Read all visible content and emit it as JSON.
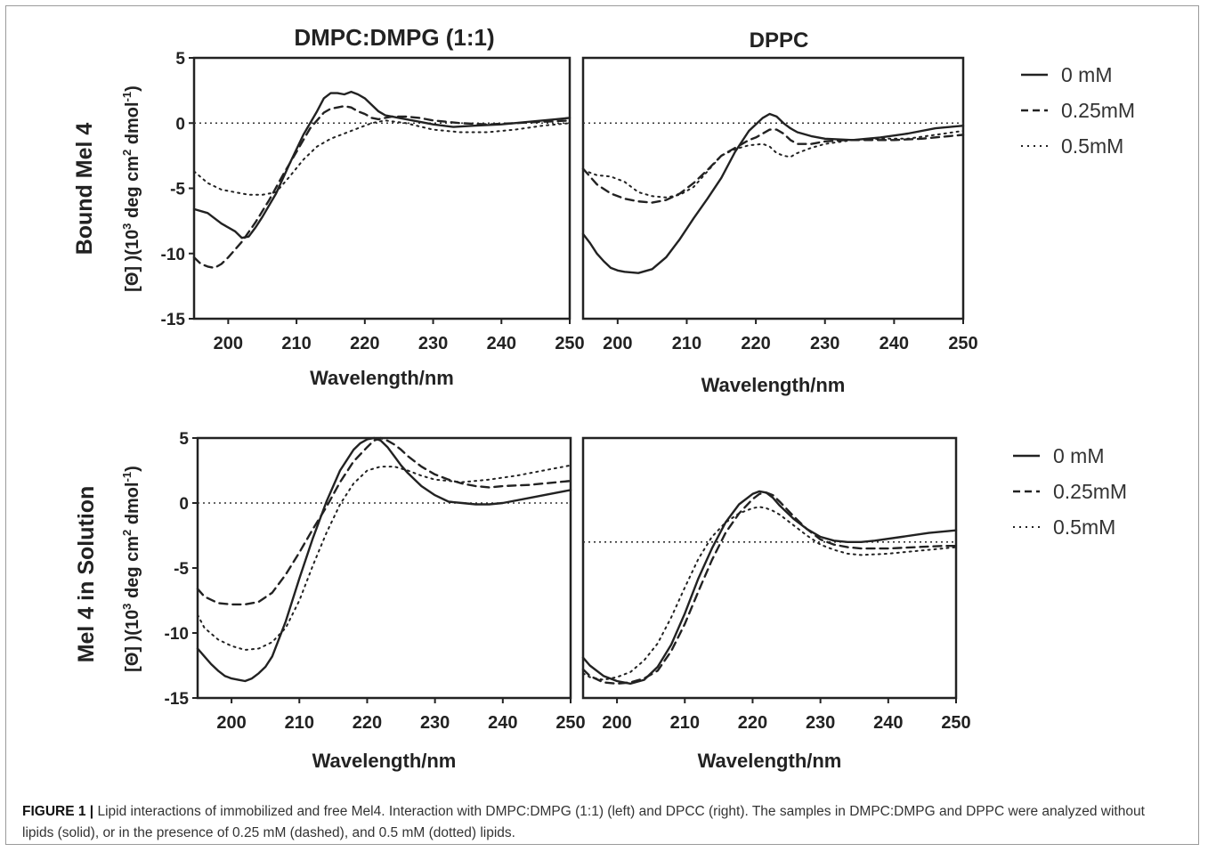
{
  "figure": {
    "row_labels": [
      "Bound Mel 4",
      "Mel 4 in Solution"
    ],
    "col_titles": [
      "DMPC:DMPG (1:1)",
      "DPPC"
    ],
    "ylabel_text": "[Θ] )(10",
    "ylabel_sup1": "3",
    "ylabel_mid": " deg cm",
    "ylabel_sup2": "2",
    "ylabel_mid2": " dmol",
    "ylabel_sup3": "-1",
    "ylabel_end": ")",
    "legend_top": [
      "0 mM",
      "0.25mM",
      "0.5mM"
    ],
    "legend_bottom": [
      "0 mM",
      "0.25mM",
      "0.5mM"
    ]
  },
  "caption": {
    "label": "FIGURE 1 |",
    "text": " Lipid interactions of immobilized and free Mel4. Interaction with DMPC:DMPG (1:1) (left) and DPCC (right). The samples in DMPC:DMPG and DPPC were analyzed without lipids (solid), or in the presence of 0.25 mM (dashed), and 0.5 mM (dotted) lipids."
  },
  "chart_data": [
    {
      "type": "line",
      "panel": "top-left",
      "title": "DMPC:DMPG (1:1)",
      "xlabel": "Wavelength/nm",
      "ylabel": "[Θ] )(10^3 deg cm^2 dmol^-1)",
      "xlim": [
        195,
        250
      ],
      "ylim": [
        -15,
        5
      ],
      "xticks": [
        200,
        210,
        220,
        230,
        240,
        250
      ],
      "yticks": [
        5,
        0,
        -5,
        -10,
        -15
      ],
      "zero_line": true,
      "series": [
        {
          "name": "0 mM",
          "style": "solid",
          "x": [
            195,
            197,
            199,
            201,
            202,
            203,
            204,
            205,
            207,
            209,
            211,
            213,
            214,
            215,
            216,
            217,
            218,
            219,
            220,
            221,
            222,
            223,
            225,
            227,
            230,
            233,
            236,
            240,
            244,
            248,
            250
          ],
          "y": [
            -6.6,
            -6.9,
            -7.7,
            -8.3,
            -8.8,
            -8.7,
            -8.0,
            -7.2,
            -5.4,
            -3.1,
            -0.9,
            0.9,
            1.9,
            2.3,
            2.3,
            2.2,
            2.4,
            2.2,
            1.9,
            1.4,
            0.9,
            0.6,
            0.4,
            0.2,
            -0.1,
            -0.3,
            -0.2,
            -0.1,
            0.1,
            0.3,
            0.4
          ]
        },
        {
          "name": "0.25mM",
          "style": "dashed",
          "x": [
            195,
            196,
            197,
            198,
            199,
            200,
            202,
            204,
            206,
            208,
            210,
            212,
            214,
            215,
            216,
            217,
            218,
            219,
            220,
            221,
            222,
            224,
            226,
            228,
            230,
            234,
            238,
            242,
            246,
            250
          ],
          "y": [
            -10.3,
            -10.8,
            -11.0,
            -11.1,
            -10.8,
            -10.3,
            -9.1,
            -7.6,
            -5.9,
            -4.0,
            -2.2,
            -0.4,
            0.8,
            1.1,
            1.2,
            1.3,
            1.2,
            0.9,
            0.7,
            0.4,
            0.3,
            0.5,
            0.5,
            0.4,
            0.2,
            0.0,
            -0.1,
            0.0,
            0.1,
            0.2
          ]
        },
        {
          "name": "0.5mM",
          "style": "dotted",
          "x": [
            195,
            197,
            199,
            201,
            203,
            205,
            207,
            209,
            211,
            213,
            215,
            217,
            219,
            221,
            223,
            226,
            230,
            234,
            238,
            242,
            246,
            250
          ],
          "y": [
            -3.7,
            -4.6,
            -5.1,
            -5.3,
            -5.5,
            -5.5,
            -5.3,
            -4.1,
            -2.8,
            -1.8,
            -1.2,
            -0.8,
            -0.4,
            0.0,
            0.2,
            0.0,
            -0.5,
            -0.7,
            -0.7,
            -0.5,
            -0.2,
            0.0
          ]
        }
      ]
    },
    {
      "type": "line",
      "panel": "top-right",
      "title": "DPPC",
      "xlabel": "Wavelength/nm",
      "xlim": [
        195,
        250
      ],
      "ylim": [
        -15,
        5
      ],
      "xticks": [
        200,
        210,
        220,
        230,
        240,
        250
      ],
      "zero_line": true,
      "series": [
        {
          "name": "0 mM",
          "style": "solid",
          "x": [
            195,
            196,
            197,
            198,
            199,
            200,
            201,
            203,
            205,
            207,
            209,
            211,
            213,
            215,
            217,
            219,
            221,
            222,
            223,
            224,
            225,
            226,
            228,
            230,
            234,
            238,
            242,
            246,
            250
          ],
          "y": [
            -8.5,
            -9.2,
            -10.0,
            -10.6,
            -11.1,
            -11.3,
            -11.4,
            -11.5,
            -11.2,
            -10.3,
            -8.9,
            -7.3,
            -5.8,
            -4.2,
            -2.2,
            -0.6,
            0.4,
            0.7,
            0.5,
            0.0,
            -0.4,
            -0.7,
            -1.0,
            -1.2,
            -1.3,
            -1.1,
            -0.8,
            -0.4,
            -0.2
          ]
        },
        {
          "name": "0.25mM",
          "style": "dashed",
          "x": [
            195,
            197,
            199,
            201,
            203,
            205,
            207,
            209,
            211,
            213,
            215,
            217,
            219,
            220,
            221,
            222,
            223,
            224,
            225,
            226,
            228,
            230,
            233,
            236,
            240,
            244,
            248,
            250
          ],
          "y": [
            -3.5,
            -4.7,
            -5.4,
            -5.8,
            -6.0,
            -6.1,
            -5.9,
            -5.4,
            -4.6,
            -3.6,
            -2.5,
            -1.9,
            -1.3,
            -1.1,
            -0.8,
            -0.5,
            -0.5,
            -0.8,
            -1.3,
            -1.6,
            -1.6,
            -1.4,
            -1.3,
            -1.3,
            -1.3,
            -1.2,
            -1.0,
            -0.9
          ]
        },
        {
          "name": "0.5mM",
          "style": "dotted",
          "x": [
            195,
            197,
            199,
            201,
            203,
            205,
            207,
            209,
            211,
            213,
            215,
            217,
            219,
            221,
            222,
            223,
            224,
            225,
            226,
            228,
            230,
            234,
            238,
            242,
            246,
            250
          ],
          "y": [
            -3.6,
            -4.0,
            -4.1,
            -4.5,
            -5.3,
            -5.6,
            -5.7,
            -5.5,
            -4.9,
            -3.7,
            -2.5,
            -2.0,
            -1.7,
            -1.6,
            -1.8,
            -2.3,
            -2.5,
            -2.6,
            -2.3,
            -1.9,
            -1.6,
            -1.3,
            -1.2,
            -1.2,
            -0.9,
            -0.6
          ]
        }
      ]
    },
    {
      "type": "line",
      "panel": "bottom-left",
      "xlabel": "Wavelength/nm",
      "ylabel": "[Θ] )(10^3 deg cm^2 dmol^-1)",
      "xlim": [
        195,
        250
      ],
      "ylim": [
        -15,
        5
      ],
      "xticks": [
        200,
        210,
        220,
        230,
        240,
        250
      ],
      "yticks": [
        5,
        0,
        -5,
        -10,
        -15
      ],
      "zero_line": true,
      "series": [
        {
          "name": "0 mM",
          "style": "solid",
          "x": [
            195,
            196,
            197,
            198,
            199,
            200,
            201,
            202,
            203,
            204,
            205,
            206,
            208,
            210,
            212,
            214,
            216,
            218,
            219,
            220,
            221,
            222,
            223,
            224,
            225,
            226,
            228,
            230,
            232,
            234,
            236,
            238,
            240,
            244,
            248,
            250
          ],
          "y": [
            -11.2,
            -11.8,
            -12.4,
            -12.9,
            -13.3,
            -13.5,
            -13.6,
            -13.7,
            -13.5,
            -13.1,
            -12.6,
            -11.8,
            -9.1,
            -5.8,
            -2.7,
            0.1,
            2.5,
            4.1,
            4.6,
            4.9,
            5.0,
            4.8,
            4.3,
            3.6,
            2.9,
            2.3,
            1.3,
            0.6,
            0.1,
            0.0,
            -0.1,
            -0.1,
            0.0,
            0.4,
            0.8,
            1.0
          ]
        },
        {
          "name": "0.25mM",
          "style": "dashed",
          "x": [
            195,
            196,
            198,
            200,
            202,
            204,
            206,
            208,
            210,
            212,
            214,
            216,
            218,
            220,
            221,
            222,
            223,
            224,
            225,
            226,
            228,
            230,
            232,
            234,
            236,
            238,
            240,
            244,
            248,
            250
          ],
          "y": [
            -6.6,
            -7.2,
            -7.7,
            -7.8,
            -7.8,
            -7.6,
            -6.9,
            -5.5,
            -3.8,
            -2.0,
            -0.3,
            1.6,
            3.2,
            4.3,
            4.8,
            5.0,
            4.8,
            4.5,
            4.1,
            3.6,
            2.8,
            2.2,
            1.8,
            1.5,
            1.3,
            1.2,
            1.3,
            1.4,
            1.6,
            1.7
          ]
        },
        {
          "name": "0.5mM",
          "style": "dotted",
          "x": [
            195,
            196,
            198,
            200,
            202,
            204,
            206,
            208,
            210,
            212,
            214,
            216,
            218,
            220,
            222,
            224,
            226,
            228,
            230,
            234,
            238,
            242,
            246,
            250
          ],
          "y": [
            -8.6,
            -9.6,
            -10.5,
            -11.0,
            -11.3,
            -11.2,
            -10.7,
            -9.6,
            -7.5,
            -4.8,
            -2.3,
            -0.1,
            1.5,
            2.5,
            2.8,
            2.8,
            2.5,
            2.1,
            1.8,
            1.6,
            1.8,
            2.1,
            2.5,
            2.9
          ]
        }
      ]
    },
    {
      "type": "line",
      "panel": "bottom-right",
      "xlabel": "Wavelength/nm",
      "xlim": [
        195,
        250
      ],
      "ylim": [
        -15,
        5
      ],
      "xticks": [
        200,
        210,
        220,
        230,
        240,
        250
      ],
      "zero_line": true,
      "zero_line_value": -3,
      "series": [
        {
          "name": "0 mM",
          "style": "solid",
          "x": [
            195,
            196,
            198,
            200,
            202,
            204,
            206,
            208,
            210,
            212,
            214,
            216,
            218,
            220,
            221,
            222,
            223,
            224,
            226,
            228,
            230,
            232,
            234,
            236,
            238,
            242,
            246,
            250
          ],
          "y": [
            -11.9,
            -12.5,
            -13.3,
            -13.7,
            -13.9,
            -13.6,
            -12.6,
            -10.9,
            -8.5,
            -5.8,
            -3.5,
            -1.5,
            -0.1,
            0.7,
            0.9,
            0.8,
            0.4,
            -0.2,
            -1.2,
            -2.0,
            -2.6,
            -2.9,
            -3.0,
            -3.0,
            -2.9,
            -2.6,
            -2.3,
            -2.1
          ]
        },
        {
          "name": "0.25mM",
          "style": "dashed",
          "x": [
            195,
            196,
            198,
            200,
            202,
            204,
            206,
            208,
            210,
            212,
            214,
            216,
            218,
            220,
            221,
            222,
            223,
            224,
            226,
            228,
            230,
            232,
            234,
            236,
            240,
            244,
            248,
            250
          ],
          "y": [
            -12.8,
            -13.3,
            -13.8,
            -13.9,
            -13.8,
            -13.5,
            -12.9,
            -11.4,
            -9.3,
            -6.8,
            -4.4,
            -2.3,
            -0.8,
            0.3,
            0.7,
            0.8,
            0.6,
            0.1,
            -1.0,
            -2.0,
            -2.8,
            -3.2,
            -3.4,
            -3.5,
            -3.5,
            -3.4,
            -3.3,
            -3.3
          ]
        },
        {
          "name": "0.5mM",
          "style": "dotted",
          "x": [
            195,
            196,
            198,
            200,
            202,
            204,
            206,
            208,
            210,
            212,
            214,
            216,
            218,
            220,
            221,
            222,
            223,
            224,
            226,
            228,
            230,
            232,
            234,
            236,
            240,
            244,
            248,
            250
          ],
          "y": [
            -13.1,
            -13.4,
            -13.6,
            -13.4,
            -13.0,
            -12.1,
            -10.8,
            -8.8,
            -6.5,
            -4.3,
            -2.6,
            -1.5,
            -0.8,
            -0.4,
            -0.3,
            -0.4,
            -0.6,
            -0.9,
            -1.7,
            -2.5,
            -3.2,
            -3.6,
            -3.9,
            -4.0,
            -3.9,
            -3.7,
            -3.5,
            -3.4
          ]
        }
      ]
    }
  ]
}
